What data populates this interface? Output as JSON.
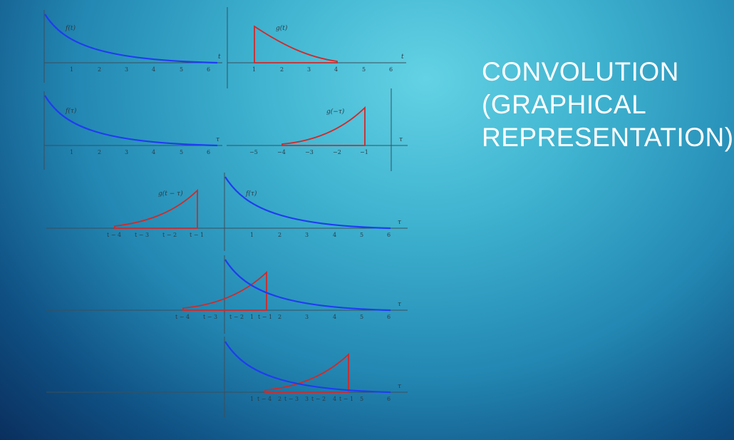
{
  "slide": {
    "title_lines": [
      "CONVOLUTION",
      "(GRAPHICAL",
      "REPRESENTATION)"
    ]
  },
  "colors": {
    "f_curve": "#1f3df0",
    "g_curve": "#d02a2a",
    "title_text": "#ffffff"
  },
  "panels": [
    {
      "id": "f-of-t",
      "function_label": "f(t)",
      "axis_var": "t",
      "ticks": [
        "1",
        "2",
        "3",
        "4",
        "5",
        "6"
      ]
    },
    {
      "id": "g-of-t",
      "function_label": "g(t)",
      "axis_var": "t",
      "ticks": [
        "1",
        "2",
        "3",
        "4",
        "5",
        "6"
      ]
    },
    {
      "id": "f-of-tau",
      "function_label": "f(τ)",
      "axis_var": "τ",
      "ticks": [
        "1",
        "2",
        "3",
        "4",
        "5",
        "6"
      ]
    },
    {
      "id": "g-of-minus-tau",
      "function_label": "g(−τ)",
      "axis_var": "τ",
      "ticks": [
        "−5",
        "−4",
        "−3",
        "−2",
        "−1"
      ]
    },
    {
      "id": "shift-far",
      "labels": [
        "g(t − τ)",
        "f(τ)"
      ],
      "axis_var": "τ",
      "ticks": [
        "t − 4",
        "t − 3",
        "t − 2",
        "t − 1",
        "1",
        "2",
        "3",
        "4",
        "5",
        "6"
      ]
    },
    {
      "id": "shift-overlap-1",
      "axis_var": "τ",
      "ticks": [
        "t − 4",
        "t − 3",
        "t − 2",
        "1",
        "t − 1",
        "2",
        "3",
        "4",
        "5",
        "6"
      ]
    },
    {
      "id": "shift-overlap-2",
      "axis_var": "τ",
      "ticks": [
        "1",
        "t − 4",
        "2",
        "t − 3",
        "3",
        "t − 2",
        "4",
        "t − 1",
        "5",
        "6"
      ]
    }
  ]
}
